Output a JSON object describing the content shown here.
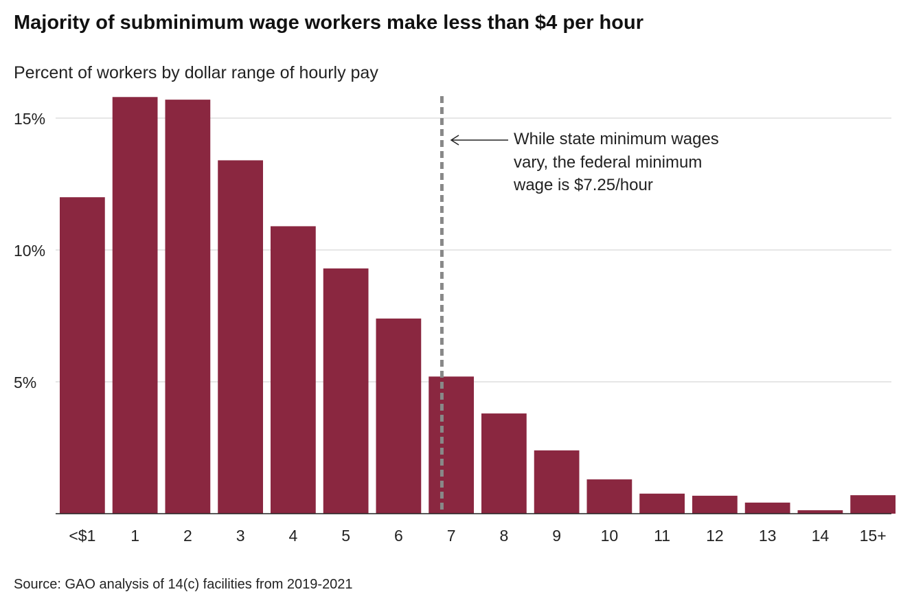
{
  "chart_data": {
    "type": "bar",
    "title": "Majority of subminimum wage workers make less than $4 per hour",
    "subtitle": "Percent of workers by dollar range of hourly pay",
    "categories": [
      "<$1",
      "1",
      "2",
      "3",
      "4",
      "5",
      "6",
      "7",
      "8",
      "9",
      "10",
      "11",
      "12",
      "13",
      "14",
      "15+"
    ],
    "values": [
      12.0,
      15.8,
      15.7,
      13.4,
      10.9,
      9.3,
      7.4,
      5.2,
      3.8,
      2.4,
      1.3,
      0.76,
      0.68,
      0.42,
      0.13,
      0.7
    ],
    "ylim": [
      0,
      16
    ],
    "yticks": [
      5,
      10,
      15
    ],
    "ytick_labels": [
      "5%",
      "10%",
      "15%"
    ],
    "xlabel": "",
    "ylabel": "",
    "grid": true,
    "bar_color": "#8a2740",
    "reference_line": {
      "x": 7.25,
      "style": "dashed",
      "color": "#888888"
    },
    "annotation": [
      "While state minimum wages",
      "vary, the federal minimum",
      "wage is $7.25/hour"
    ],
    "source": "Source: GAO analysis of 14(c) facilities from 2019-2021"
  }
}
